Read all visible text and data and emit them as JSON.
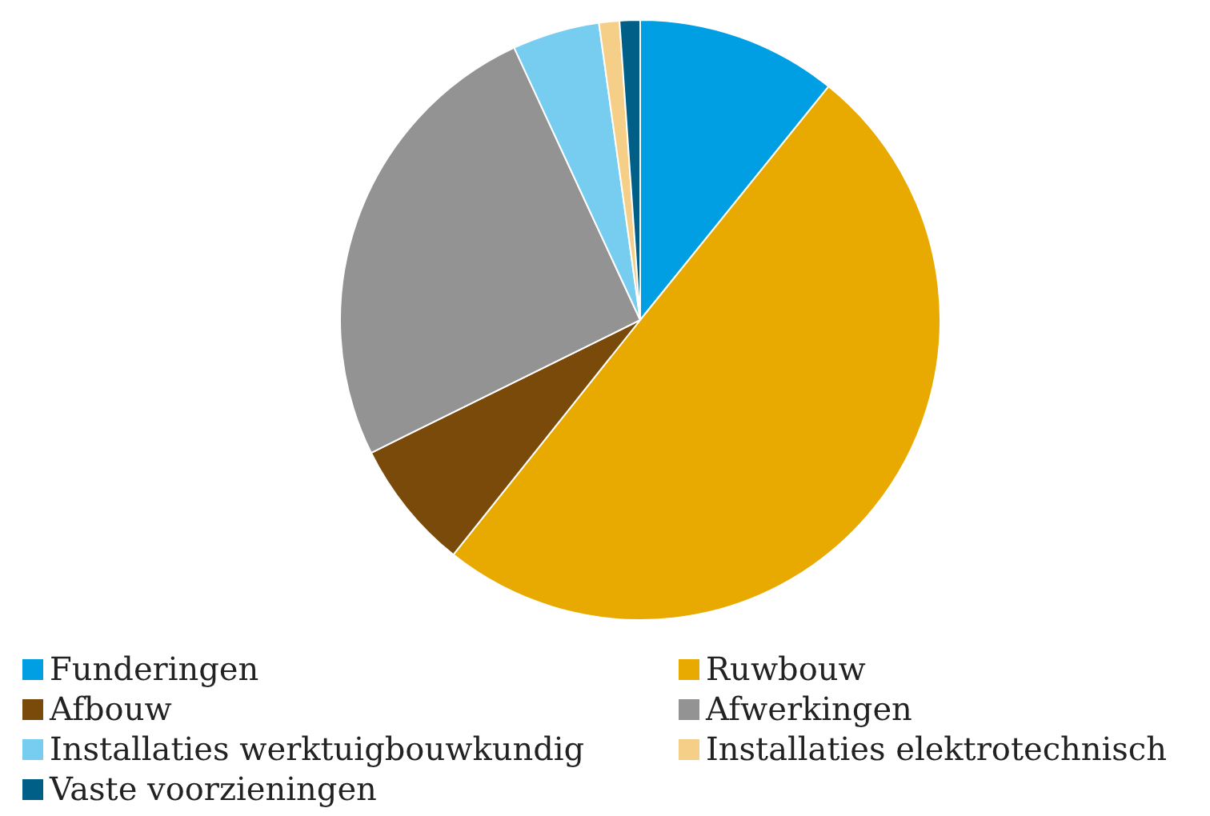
{
  "chart_data": {
    "type": "pie",
    "categories": [
      "Funderingen",
      "Ruwbouw",
      "Afbouw",
      "Afwerkingen",
      "Installaties werktuigbouwkundig",
      "Installaties elektrotechnisch",
      "Vaste voorzieningen"
    ],
    "values": [
      10.8,
      49.9,
      7.0,
      25.4,
      4.7,
      1.1,
      1.1
    ],
    "colors": [
      "#009fe3",
      "#e8aa00",
      "#7a4a0a",
      "#939393",
      "#76cdf0",
      "#f5cf87",
      "#005f87"
    ],
    "legend": "bottom"
  }
}
